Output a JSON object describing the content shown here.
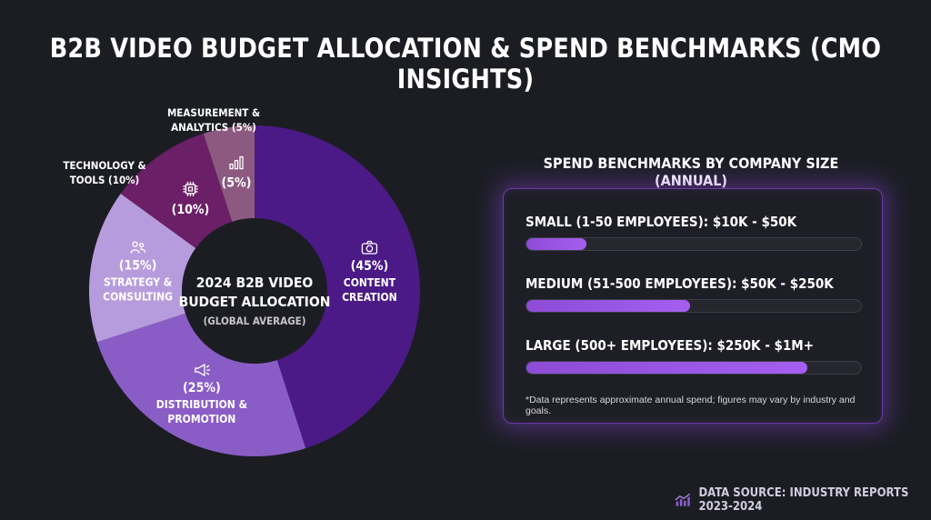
{
  "title": "B2B VIDEO BUDGET ALLOCATION & SPEND BENCHMARKS (CMO INSIGHTS)",
  "colors": {
    "background": "#1b1d23",
    "accent": "#a45ff0",
    "slices": [
      "#4b1a86",
      "#8a5dc6",
      "#b79cdd",
      "#6b1f66",
      "#8c5a80"
    ]
  },
  "chart_data": [
    {
      "type": "pie",
      "title": "2024 B2B VIDEO BUDGET ALLOCATION",
      "subtitle": "(GLOBAL AVERAGE)",
      "slices": [
        {
          "name": "CONTENT CREATION",
          "value": 45,
          "pct_label": "(45%)",
          "name_lines": [
            "CONTENT",
            "CREATION"
          ],
          "icon": "camera-icon"
        },
        {
          "name": "DISTRIBUTION & PROMOTION",
          "value": 25,
          "pct_label": "(25%)",
          "name_lines": [
            "DISTRIBUTION &",
            "PROMOTION"
          ],
          "icon": "megaphone-icon"
        },
        {
          "name": "STRATEGY & CONSULTING",
          "value": 15,
          "pct_label": "(15%)",
          "name_lines": [
            "STRATEGY &",
            "CONSULTING"
          ],
          "icon": "people-icon"
        },
        {
          "name": "TECHNOLOGY & TOOLS",
          "value": 10,
          "pct_label": "(10%)",
          "name_lines": [
            "TECHNOLOGY &",
            "TOOLS (10%)"
          ],
          "icon": "chip-icon"
        },
        {
          "name": "MEASUREMENT & ANALYTICS",
          "value": 5,
          "pct_label": "(5%)",
          "name_lines": [
            "MEASUREMENT &",
            "ANALYTICS (5%)"
          ],
          "icon": "bar-chart-icon"
        }
      ]
    },
    {
      "type": "bar",
      "title": "SPEND BENCHMARKS BY COMPANY SIZE (ANNUAL)",
      "categories": [
        "SMALL (1-50 EMPLOYEES): $10K - $50K",
        "MEDIUM (51-500 EMPLOYEES): $50K - $250K",
        "LARGE (500+ EMPLOYEES): $250K - $1M+"
      ],
      "fill_fraction": [
        0.18,
        0.49,
        0.84
      ],
      "note": "*Data represents approximate annual spend; figures may vary by industry and goals."
    }
  ],
  "center_title_lines": [
    "2024 B2B VIDEO",
    "BUDGET ALLOCATION"
  ],
  "source": {
    "text": "DATA SOURCE: INDUSTRY REPORTS 2023-2024",
    "icon": "trend-chart-icon"
  }
}
